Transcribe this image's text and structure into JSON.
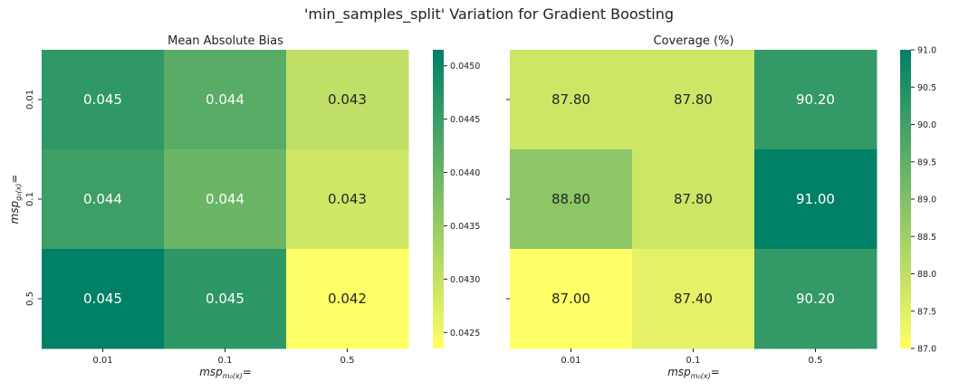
{
  "suptitle": "'min_samples_split' Variation for Gradient Boosting",
  "chart_data": [
    {
      "type": "heatmap",
      "title": "Mean Absolute Bias",
      "x_categories": [
        "0.01",
        "0.1",
        "0.5"
      ],
      "y_categories": [
        "0.01",
        "0.1",
        "0.5"
      ],
      "values": [
        [
          0.045,
          0.044,
          0.043
        ],
        [
          0.044,
          0.044,
          0.043
        ],
        [
          0.045,
          0.045,
          0.042
        ]
      ],
      "colorscale_values": [
        [
          0.04462,
          0.04418,
          0.04305
        ],
        [
          0.04448,
          0.04397,
          0.04288
        ],
        [
          0.04515,
          0.04465,
          0.04235
        ]
      ],
      "annotations": [
        [
          "0.045",
          "0.044",
          "0.043"
        ],
        [
          "0.044",
          "0.044",
          "0.043"
        ],
        [
          "0.045",
          "0.045",
          "0.042"
        ]
      ],
      "vmin": 0.04235,
      "vmax": 0.04515,
      "colorbar_ticks": [
        "0.0425",
        "0.0430",
        "0.0435",
        "0.0440",
        "0.0445",
        "0.0450"
      ],
      "colorbar_tick_values": [
        0.0425,
        0.043,
        0.0435,
        0.044,
        0.0445,
        0.045
      ],
      "colormap": "summer_r",
      "colormap_stops": [
        "#ffff66",
        "#008066"
      ],
      "xlabel": "msp_{m₀(x)}=",
      "ylabel": "msp_{g₀(x)}="
    },
    {
      "type": "heatmap",
      "title": "Coverage (%)",
      "x_categories": [
        "0.01",
        "0.1",
        "0.5"
      ],
      "y_categories": [
        "0.01",
        "0.1",
        "0.5"
      ],
      "values": [
        [
          87.8,
          87.8,
          90.2
        ],
        [
          88.8,
          87.8,
          91.0
        ],
        [
          87.0,
          87.4,
          90.2
        ]
      ],
      "annotations": [
        [
          "87.80",
          "87.80",
          "90.20"
        ],
        [
          "88.80",
          "87.80",
          "91.00"
        ],
        [
          "87.00",
          "87.40",
          "90.20"
        ]
      ],
      "vmin": 87.0,
      "vmax": 91.0,
      "colorbar_ticks": [
        "87.0",
        "87.5",
        "88.0",
        "88.5",
        "89.0",
        "89.5",
        "90.0",
        "90.5",
        "91.0"
      ],
      "colorbar_tick_values": [
        87.0,
        87.5,
        88.0,
        88.5,
        89.0,
        89.5,
        90.0,
        90.5,
        91.0
      ],
      "colormap": "summer_r",
      "colormap_stops": [
        "#ffff66",
        "#008066"
      ],
      "xlabel": "msp_{m₀(x)}=",
      "ylabel": ""
    }
  ]
}
